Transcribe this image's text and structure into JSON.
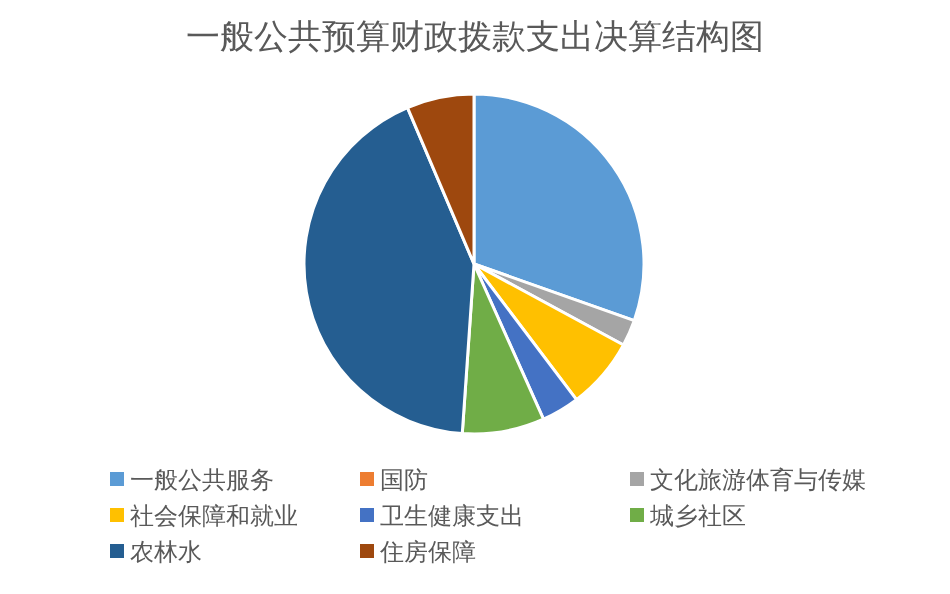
{
  "chart_data": {
    "type": "pie",
    "title": "一般公共预算财政拨款支出决算结构图",
    "categories": [
      "一般公共服务",
      "国防",
      "文化旅游体育与传媒",
      "社会保障和就业",
      "卫生健康支出",
      "城乡社区",
      "农林水",
      "住房保障"
    ],
    "values": [
      30.4,
      0,
      2.5,
      6.8,
      3.6,
      7.8,
      42.5,
      6.4
    ],
    "colors": [
      "#5b9bd5",
      "#ed7d31",
      "#a5a5a5",
      "#ffc000",
      "#4472c4",
      "#70ad47",
      "#255e91",
      "#9e480e"
    ],
    "legend": "bottom"
  }
}
